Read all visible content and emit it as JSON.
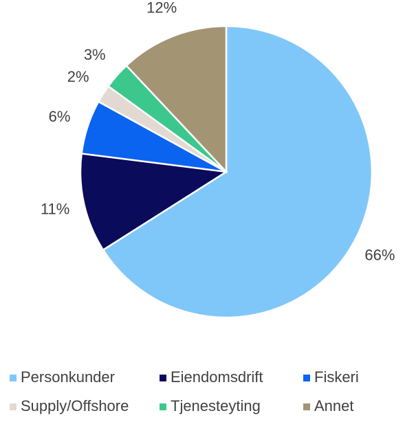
{
  "chart_data": {
    "type": "pie",
    "categories": [
      "Personkunder",
      "Eiendomsdrift",
      "Fiskeri",
      "Supply/Offshore",
      "Tjenesteyting",
      "Annet"
    ],
    "values": [
      66,
      11,
      6,
      2,
      3,
      12
    ],
    "value_labels": [
      "66%",
      "11%",
      "6%",
      "2%",
      "3%",
      "12%"
    ],
    "colors": [
      "#80c7f9",
      "#0b0b5c",
      "#0b64f0",
      "#e2dad2",
      "#3cc88c",
      "#a39474"
    ],
    "legend": "bottom"
  }
}
